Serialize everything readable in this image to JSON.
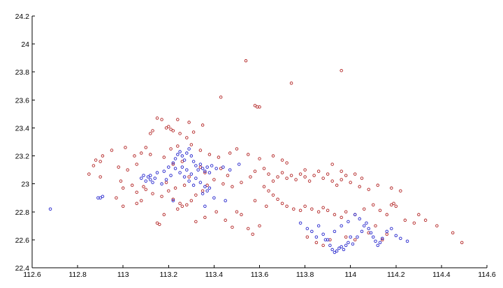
{
  "chart_data": {
    "type": "scatter",
    "title": "",
    "xlabel": "",
    "ylabel": "",
    "xlim": [
      112.6,
      114.6
    ],
    "ylim": [
      22.4,
      24.2
    ],
    "xticks": [
      "112.6",
      "112.8",
      "113",
      "113.2",
      "113.4",
      "113.6",
      "113.8",
      "114",
      "114.2",
      "114.4",
      "114.6"
    ],
    "yticks": [
      "22.4",
      "22.6",
      "22.8",
      "23",
      "23.2",
      "23.4",
      "23.6",
      "23.8",
      "24",
      "24.2"
    ],
    "grid": false,
    "legend": "none",
    "marker": "circle-open",
    "series": [
      {
        "color": "#b22222",
        "points": [
          [
            113.54,
            23.88
          ],
          [
            113.96,
            23.81
          ],
          [
            113.74,
            23.72
          ],
          [
            113.43,
            23.62
          ],
          [
            113.59,
            23.55
          ],
          [
            113.6,
            23.55
          ],
          [
            113.58,
            23.56
          ],
          [
            113.15,
            23.47
          ],
          [
            113.17,
            23.46
          ],
          [
            113.24,
            23.46
          ],
          [
            113.2,
            23.41
          ],
          [
            113.21,
            23.39
          ],
          [
            113.22,
            23.38
          ],
          [
            113.19,
            23.4
          ],
          [
            113.29,
            23.44
          ],
          [
            113.35,
            23.42
          ],
          [
            113.31,
            23.37
          ],
          [
            113.25,
            23.36
          ],
          [
            113.13,
            23.38
          ],
          [
            113.12,
            23.36
          ],
          [
            113.28,
            23.33
          ],
          [
            113.1,
            23.26
          ],
          [
            113.01,
            23.26
          ],
          [
            112.95,
            23.24
          ],
          [
            112.91,
            23.2
          ],
          [
            112.88,
            23.17
          ],
          [
            112.9,
            23.16
          ],
          [
            112.87,
            23.13
          ],
          [
            113.05,
            23.2
          ],
          [
            113.08,
            23.22
          ],
          [
            113.12,
            23.21
          ],
          [
            113.18,
            23.19
          ],
          [
            113.21,
            23.25
          ],
          [
            113.24,
            23.27
          ],
          [
            113.3,
            23.28
          ],
          [
            113.34,
            23.24
          ],
          [
            113.38,
            23.21
          ],
          [
            113.42,
            23.19
          ],
          [
            113.47,
            23.22
          ],
          [
            113.5,
            23.25
          ],
          [
            113.55,
            23.21
          ],
          [
            113.6,
            23.18
          ],
          [
            112.85,
            23.07
          ],
          [
            112.9,
            23.05
          ],
          [
            112.98,
            23.12
          ],
          [
            113.02,
            23.1
          ],
          [
            113.06,
            23.14
          ],
          [
            112.99,
            23.02
          ],
          [
            113.0,
            22.97
          ],
          [
            113.04,
            22.99
          ],
          [
            113.06,
            22.94
          ],
          [
            113.1,
            22.96
          ],
          [
            113.09,
            22.98
          ],
          [
            113.13,
            22.93
          ],
          [
            113.17,
            22.91
          ],
          [
            113.2,
            22.95
          ],
          [
            113.22,
            22.89
          ],
          [
            113.25,
            22.86
          ],
          [
            113.26,
            22.84
          ],
          [
            113.24,
            22.82
          ],
          [
            113.28,
            22.85
          ],
          [
            113.3,
            22.88
          ],
          [
            113.32,
            22.92
          ],
          [
            113.35,
            22.95
          ],
          [
            113.37,
            22.99
          ],
          [
            113.4,
            23.03
          ],
          [
            113.44,
            23.0
          ],
          [
            113.48,
            22.98
          ],
          [
            113.52,
            23.01
          ],
          [
            113.56,
            23.05
          ],
          [
            113.58,
            23.09
          ],
          [
            113.62,
            23.11
          ],
          [
            113.64,
            23.07
          ],
          [
            113.66,
            23.02
          ],
          [
            113.68,
            23.05
          ],
          [
            113.7,
            23.08
          ],
          [
            113.72,
            23.04
          ],
          [
            113.74,
            23.06
          ],
          [
            113.76,
            23.03
          ],
          [
            113.78,
            23.07
          ],
          [
            113.8,
            23.05
          ],
          [
            113.82,
            23.02
          ],
          [
            113.84,
            23.06
          ],
          [
            113.86,
            23.09
          ],
          [
            113.88,
            23.04
          ],
          [
            113.9,
            23.07
          ],
          [
            113.92,
            23.02
          ],
          [
            113.94,
            22.99
          ],
          [
            113.96,
            23.03
          ],
          [
            113.98,
            23.06
          ],
          [
            114.0,
            23.01
          ],
          [
            114.04,
            22.98
          ],
          [
            114.08,
            22.96
          ],
          [
            114.12,
            22.99
          ],
          [
            114.18,
            22.97
          ],
          [
            114.22,
            22.95
          ],
          [
            113.62,
            22.98
          ],
          [
            113.64,
            22.95
          ],
          [
            113.66,
            22.92
          ],
          [
            113.68,
            22.89
          ],
          [
            113.7,
            22.86
          ],
          [
            113.72,
            22.84
          ],
          [
            113.75,
            22.82
          ],
          [
            113.78,
            22.81
          ],
          [
            113.8,
            22.84
          ],
          [
            113.83,
            22.82
          ],
          [
            113.86,
            22.8
          ],
          [
            113.88,
            22.83
          ],
          [
            113.9,
            22.81
          ],
          [
            113.93,
            22.78
          ],
          [
            113.96,
            22.76
          ],
          [
            113.98,
            22.8
          ],
          [
            114.02,
            22.78
          ],
          [
            114.06,
            22.82
          ],
          [
            114.1,
            22.85
          ],
          [
            114.13,
            22.81
          ],
          [
            114.16,
            22.78
          ],
          [
            114.18,
            22.85
          ],
          [
            114.2,
            22.84
          ],
          [
            114.19,
            22.86
          ],
          [
            114.24,
            22.74
          ],
          [
            114.28,
            22.72
          ],
          [
            114.3,
            22.78
          ],
          [
            114.33,
            22.74
          ],
          [
            114.38,
            22.7
          ],
          [
            114.45,
            22.65
          ],
          [
            114.49,
            22.58
          ],
          [
            113.32,
            22.73
          ],
          [
            113.36,
            22.76
          ],
          [
            113.41,
            22.8
          ],
          [
            113.45,
            22.74
          ],
          [
            113.5,
            22.8
          ],
          [
            113.52,
            22.78
          ],
          [
            113.48,
            22.69
          ],
          [
            113.55,
            22.68
          ],
          [
            113.57,
            22.64
          ],
          [
            113.6,
            22.7
          ],
          [
            113.15,
            22.72
          ],
          [
            113.16,
            22.71
          ],
          [
            113.18,
            22.78
          ],
          [
            113.06,
            22.86
          ],
          [
            113.08,
            22.88
          ],
          [
            113.0,
            22.84
          ],
          [
            112.97,
            22.9
          ],
          [
            113.27,
            22.99
          ],
          [
            113.23,
            22.97
          ],
          [
            113.19,
            23.01
          ],
          [
            113.81,
            22.62
          ],
          [
            113.85,
            22.58
          ],
          [
            113.88,
            22.56
          ],
          [
            113.91,
            22.6
          ],
          [
            113.98,
            22.62
          ],
          [
            114.02,
            22.6
          ],
          [
            114.08,
            22.65
          ],
          [
            114.14,
            22.6
          ],
          [
            114.16,
            22.64
          ],
          [
            114.11,
            22.7
          ],
          [
            113.72,
            23.15
          ],
          [
            113.7,
            23.17
          ],
          [
            113.66,
            23.2
          ],
          [
            113.8,
            23.1
          ],
          [
            113.92,
            23.14
          ],
          [
            113.96,
            23.09
          ],
          [
            114.05,
            23.04
          ],
          [
            114.02,
            23.07
          ],
          [
            113.58,
            22.88
          ],
          [
            113.63,
            22.84
          ],
          [
            113.34,
            23.12
          ],
          [
            113.36,
            23.08
          ],
          [
            113.29,
            23.05
          ],
          [
            113.43,
            23.11
          ],
          [
            113.46,
            23.06
          ],
          [
            113.22,
            23.14
          ],
          [
            113.26,
            23.16
          ]
        ]
      },
      {
        "color": "#2222cc",
        "points": [
          [
            112.68,
            22.82
          ],
          [
            112.89,
            22.9
          ],
          [
            112.9,
            22.9
          ],
          [
            112.91,
            22.91
          ],
          [
            113.08,
            23.04
          ],
          [
            113.1,
            23.02
          ],
          [
            113.11,
            23.05
          ],
          [
            113.12,
            23.03
          ],
          [
            113.13,
            23.01
          ],
          [
            113.14,
            23.04
          ],
          [
            113.12,
            23.06
          ],
          [
            113.09,
            23.06
          ],
          [
            113.15,
            23.08
          ],
          [
            113.18,
            23.09
          ],
          [
            113.2,
            23.12
          ],
          [
            113.22,
            23.15
          ],
          [
            113.23,
            23.18
          ],
          [
            113.24,
            23.21
          ],
          [
            113.25,
            23.23
          ],
          [
            113.26,
            23.2
          ],
          [
            113.27,
            23.17
          ],
          [
            113.28,
            23.22
          ],
          [
            113.29,
            23.25
          ],
          [
            113.3,
            23.2
          ],
          [
            113.31,
            23.16
          ],
          [
            113.32,
            23.13
          ],
          [
            113.33,
            23.1
          ],
          [
            113.34,
            23.14
          ],
          [
            113.35,
            23.11
          ],
          [
            113.36,
            23.09
          ],
          [
            113.37,
            23.12
          ],
          [
            113.38,
            23.08
          ],
          [
            113.26,
            23.12
          ],
          [
            113.28,
            23.1
          ],
          [
            113.3,
            23.07
          ],
          [
            113.32,
            23.04
          ],
          [
            113.34,
            23.01
          ],
          [
            113.36,
            22.98
          ],
          [
            113.37,
            22.95
          ],
          [
            113.38,
            22.97
          ],
          [
            113.35,
            22.93
          ],
          [
            113.31,
            22.99
          ],
          [
            113.29,
            23.02
          ],
          [
            113.27,
            23.05
          ],
          [
            113.25,
            23.08
          ],
          [
            113.23,
            23.11
          ],
          [
            113.21,
            23.06
          ],
          [
            113.19,
            23.03
          ],
          [
            113.17,
            23.0
          ],
          [
            113.39,
            23.13
          ],
          [
            113.41,
            23.11
          ],
          [
            113.44,
            23.12
          ],
          [
            113.47,
            23.1
          ],
          [
            113.51,
            23.14
          ],
          [
            113.45,
            22.88
          ],
          [
            113.36,
            22.84
          ],
          [
            113.4,
            22.9
          ],
          [
            113.22,
            22.88
          ],
          [
            113.78,
            22.72
          ],
          [
            113.81,
            22.68
          ],
          [
            113.83,
            22.66
          ],
          [
            113.86,
            22.7
          ],
          [
            113.88,
            22.64
          ],
          [
            113.9,
            22.6
          ],
          [
            113.91,
            22.56
          ],
          [
            113.92,
            22.53
          ],
          [
            113.93,
            22.51
          ],
          [
            113.94,
            22.52
          ],
          [
            113.95,
            22.54
          ],
          [
            113.96,
            22.55
          ],
          [
            113.97,
            22.53
          ],
          [
            113.98,
            22.56
          ],
          [
            113.99,
            22.58
          ],
          [
            114.01,
            22.57
          ],
          [
            114.03,
            22.62
          ],
          [
            114.05,
            22.66
          ],
          [
            114.06,
            22.7
          ],
          [
            114.07,
            22.72
          ],
          [
            114.08,
            22.68
          ],
          [
            114.09,
            22.65
          ],
          [
            114.1,
            22.62
          ],
          [
            114.11,
            22.59
          ],
          [
            114.12,
            22.56
          ],
          [
            114.13,
            22.58
          ],
          [
            114.14,
            22.61
          ],
          [
            114.16,
            22.66
          ],
          [
            114.18,
            22.68
          ],
          [
            114.2,
            22.63
          ],
          [
            114.22,
            22.61
          ],
          [
            114.25,
            22.59
          ],
          [
            114.04,
            22.75
          ],
          [
            114.02,
            22.78
          ],
          [
            113.99,
            22.73
          ],
          [
            113.96,
            22.7
          ],
          [
            113.93,
            22.66
          ],
          [
            113.89,
            22.6
          ],
          [
            113.85,
            22.62
          ],
          [
            114.0,
            22.62
          ]
        ]
      }
    ]
  }
}
